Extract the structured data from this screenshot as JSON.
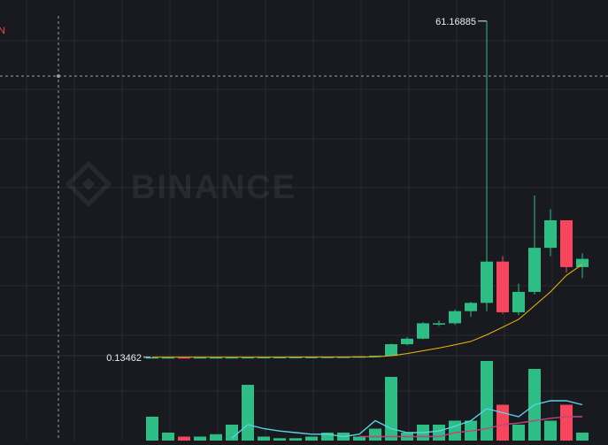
{
  "header": {
    "partial_label": "N"
  },
  "watermark": {
    "text": "BINANCE"
  },
  "annotations": {
    "high_label": "61.16885",
    "low_label": "0.13462"
  },
  "colors": {
    "background": "#181a20",
    "grid": "#262a31",
    "up": "#2ebd85",
    "down": "#f6465d",
    "ma_line": "#f0b90b",
    "volume_ma_fast": "#5ad2e6",
    "volume_ma_slow": "#c2447c",
    "crosshair": "#9aa0a6",
    "label_text": "#eaecef",
    "header_red": "#f6465d"
  },
  "chart_data": [
    {
      "type": "candlestick",
      "title": "",
      "ylim": [
        -15,
        65
      ],
      "grid": true,
      "candles": [
        {
          "o": 0.13462,
          "h": 0.14,
          "l": 0.13462,
          "c": 0.14
        },
        {
          "o": 0.14,
          "h": 0.15,
          "l": 0.13,
          "c": 0.14
        },
        {
          "o": 0.14,
          "h": 0.14,
          "l": 0.13,
          "c": 0.13
        },
        {
          "o": 0.13,
          "h": 0.14,
          "l": 0.13,
          "c": 0.14
        },
        {
          "o": 0.14,
          "h": 0.15,
          "l": 0.13,
          "c": 0.14
        },
        {
          "o": 0.14,
          "h": 0.16,
          "l": 0.14,
          "c": 0.15
        },
        {
          "o": 0.15,
          "h": 0.16,
          "l": 0.14,
          "c": 0.16
        },
        {
          "o": 0.16,
          "h": 0.17,
          "l": 0.15,
          "c": 0.17
        },
        {
          "o": 0.17,
          "h": 0.18,
          "l": 0.16,
          "c": 0.18
        },
        {
          "o": 0.18,
          "h": 0.19,
          "l": 0.17,
          "c": 0.19
        },
        {
          "o": 0.19,
          "h": 0.2,
          "l": 0.18,
          "c": 0.2
        },
        {
          "o": 0.2,
          "h": 0.22,
          "l": 0.19,
          "c": 0.22
        },
        {
          "o": 0.22,
          "h": 0.24,
          "l": 0.21,
          "c": 0.24
        },
        {
          "o": 0.24,
          "h": 0.3,
          "l": 0.23,
          "c": 0.3
        },
        {
          "o": 0.3,
          "h": 0.4,
          "l": 0.28,
          "c": 0.4
        },
        {
          "o": 0.4,
          "h": 2.6,
          "l": 0.35,
          "c": 2.5
        },
        {
          "o": 2.5,
          "h": 3.8,
          "l": 2.3,
          "c": 3.5
        },
        {
          "o": 3.5,
          "h": 6.5,
          "l": 3.4,
          "c": 6.3
        },
        {
          "o": 6.3,
          "h": 6.8,
          "l": 5.8,
          "c": 6.3
        },
        {
          "o": 6.3,
          "h": 8.8,
          "l": 6.0,
          "c": 8.5
        },
        {
          "o": 8.5,
          "h": 10.2,
          "l": 7.5,
          "c": 10.0
        },
        {
          "o": 10.0,
          "h": 61.16885,
          "l": 8.5,
          "c": 17.5
        },
        {
          "o": 17.5,
          "h": 18.5,
          "l": 8.0,
          "c": 8.3
        },
        {
          "o": 8.3,
          "h": 13.5,
          "l": 7.8,
          "c": 12.0
        },
        {
          "o": 12.0,
          "h": 29.5,
          "l": 11.5,
          "c": 20.0
        },
        {
          "o": 20.0,
          "h": 27.0,
          "l": 18.5,
          "c": 25.0
        },
        {
          "o": 25.0,
          "h": 24.5,
          "l": 15.5,
          "c": 16.5
        },
        {
          "o": 16.5,
          "h": 19.0,
          "l": 14.5,
          "c": 18.0
        }
      ],
      "ma": [
        0.14,
        0.14,
        0.14,
        0.14,
        0.14,
        0.14,
        0.15,
        0.15,
        0.15,
        0.16,
        0.16,
        0.17,
        0.17,
        0.18,
        0.2,
        0.4,
        0.8,
        1.3,
        1.8,
        2.4,
        3.0,
        4.2,
        5.6,
        7.0,
        9.5,
        12.0,
        15.0,
        17.0
      ],
      "high_index": 21,
      "low_index": 0
    },
    {
      "type": "bar",
      "title": "",
      "series": [
        {
          "values": [
            0.3,
            0.1,
            0.05,
            0.05,
            0.08,
            0.2,
            0.7,
            0.05,
            0.03,
            0.03,
            0.05,
            0.1,
            0.1,
            0.05,
            0.15,
            0.8,
            0.1,
            0.2,
            0.2,
            0.25,
            0.25,
            1.0,
            0.45,
            0.2,
            0.9,
            0.25,
            0.45,
            0.1
          ]
        },
        {
          "values": [
            0.1,
            0.12,
            0.1,
            0.08,
            0.05,
            0.03,
            0.2,
            0.15,
            0.12,
            0.1,
            0.08,
            0.08,
            0.05,
            0.08,
            0.25,
            0.15,
            0.1,
            0.1,
            0.12,
            0.18,
            0.25,
            0.4,
            0.35,
            0.3,
            0.45,
            0.5,
            0.5,
            0.45
          ]
        },
        {
          "values": [
            0.05,
            0.05,
            0.05,
            0.05,
            0.05,
            0.05,
            0.05,
            0.05,
            0.05,
            0.05,
            0.05,
            0.05,
            0.05,
            0.05,
            0.05,
            0.05,
            0.05,
            0.05,
            0.05,
            0.1,
            0.12,
            0.15,
            0.2,
            0.22,
            0.25,
            0.28,
            0.3,
            0.3
          ]
        }
      ]
    }
  ]
}
